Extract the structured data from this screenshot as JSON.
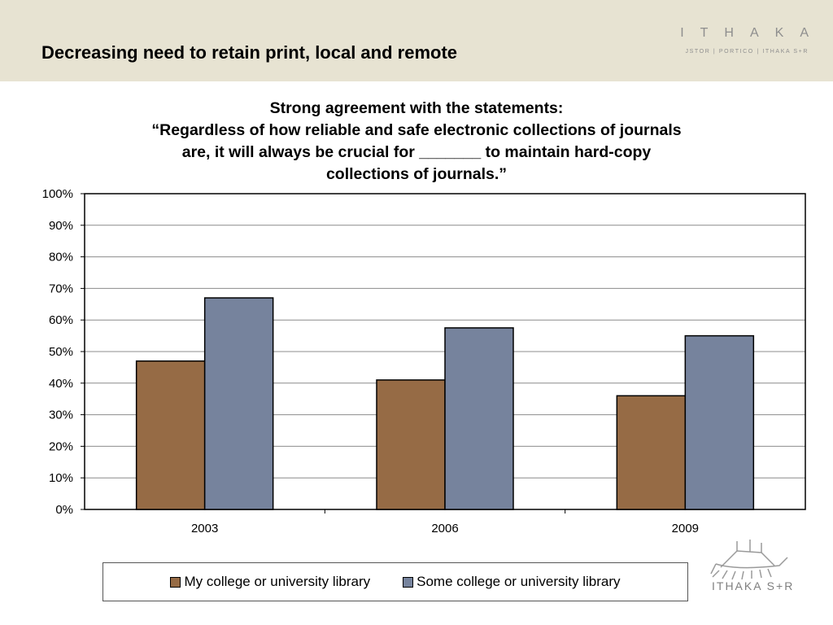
{
  "slide": {
    "title": "Decreasing need to retain print, local and remote"
  },
  "brand": {
    "name": "ITHAKA",
    "sub": "JSTOR | PORTICO | ITHAKA S+R",
    "logo_text": "ITHAKA S+R"
  },
  "colors": {
    "header_bg": "#e7e3d2",
    "series_my": "#966b45",
    "series_some": "#76839d"
  },
  "chart_data": {
    "type": "bar",
    "title_lines": [
      "Strong agreement with the statements:",
      "“Regardless of how reliable and safe electronic collections of journals",
      "are, it will always be crucial for _______ to maintain hard-copy",
      "collections of journals.”"
    ],
    "categories": [
      "2003",
      "2006",
      "2009"
    ],
    "series": [
      {
        "name": "My college or university library",
        "values": [
          47,
          41,
          36
        ]
      },
      {
        "name": "Some college or university library",
        "values": [
          67,
          57.5,
          55
        ]
      }
    ],
    "ylim": [
      0,
      100
    ],
    "yticks": [
      "0%",
      "10%",
      "20%",
      "30%",
      "40%",
      "50%",
      "60%",
      "70%",
      "80%",
      "90%",
      "100%"
    ],
    "grid": true,
    "legend": "bottom"
  }
}
